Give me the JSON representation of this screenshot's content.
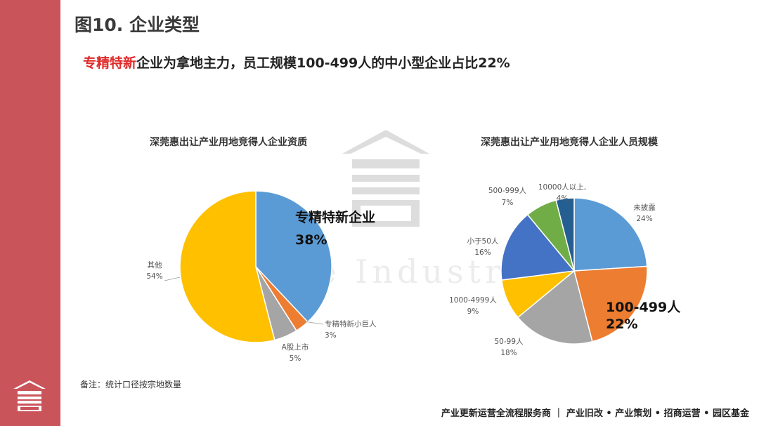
{
  "header": {
    "title": "图10. 企业类型",
    "subtitle_highlight": "专精特新",
    "subtitle_rest": "企业为拿地主力，员工规模100-499人的中小型企业占比22%"
  },
  "note": "备注：统计口径按宗地数量",
  "footer": "产业更新运营全流程服务商 ｜ 产业旧改 • 产业策划 • 招商运营 • 园区基金",
  "watermark_text": "One Industry",
  "colors": {
    "sidebar": "#c9545a",
    "highlight": "#e02a2a"
  },
  "chart_data": [
    {
      "type": "pie",
      "title": "深莞惠出让产业用地竞得人企业资质",
      "slices": [
        {
          "label": "专精特新企业",
          "value": 38,
          "value_label": "38%",
          "color": "#5b9bd5"
        },
        {
          "label": "专精特新小巨人",
          "value": 3,
          "value_label": "3%",
          "color": "#ed7d31"
        },
        {
          "label": "A股上市",
          "value": 5,
          "value_label": "5%",
          "color": "#a5a5a5"
        },
        {
          "label": "其他",
          "value": 54,
          "value_label": "54%",
          "color": "#ffc000"
        }
      ]
    },
    {
      "type": "pie",
      "title": "深莞惠出让产业用地竞得人企业人员规模",
      "slices": [
        {
          "label": "未披露",
          "value": 24,
          "value_label": "24%",
          "color": "#5b9bd5"
        },
        {
          "label": "100-499人",
          "value": 22,
          "value_label": "22%",
          "color": "#ed7d31"
        },
        {
          "label": "50-99人",
          "value": 18,
          "value_label": "18%",
          "color": "#a5a5a5"
        },
        {
          "label": "1000-4999人",
          "value": 9,
          "value_label": "9%",
          "color": "#ffc000"
        },
        {
          "label": "小于50人",
          "value": 16,
          "value_label": "16%",
          "color": "#4472c4"
        },
        {
          "label": "500-999人",
          "value": 7,
          "value_label": "7%",
          "color": "#70ad47"
        },
        {
          "label": "10000人以上,",
          "value": 4,
          "value_label": "4%",
          "color": "#255e91"
        }
      ]
    }
  ]
}
